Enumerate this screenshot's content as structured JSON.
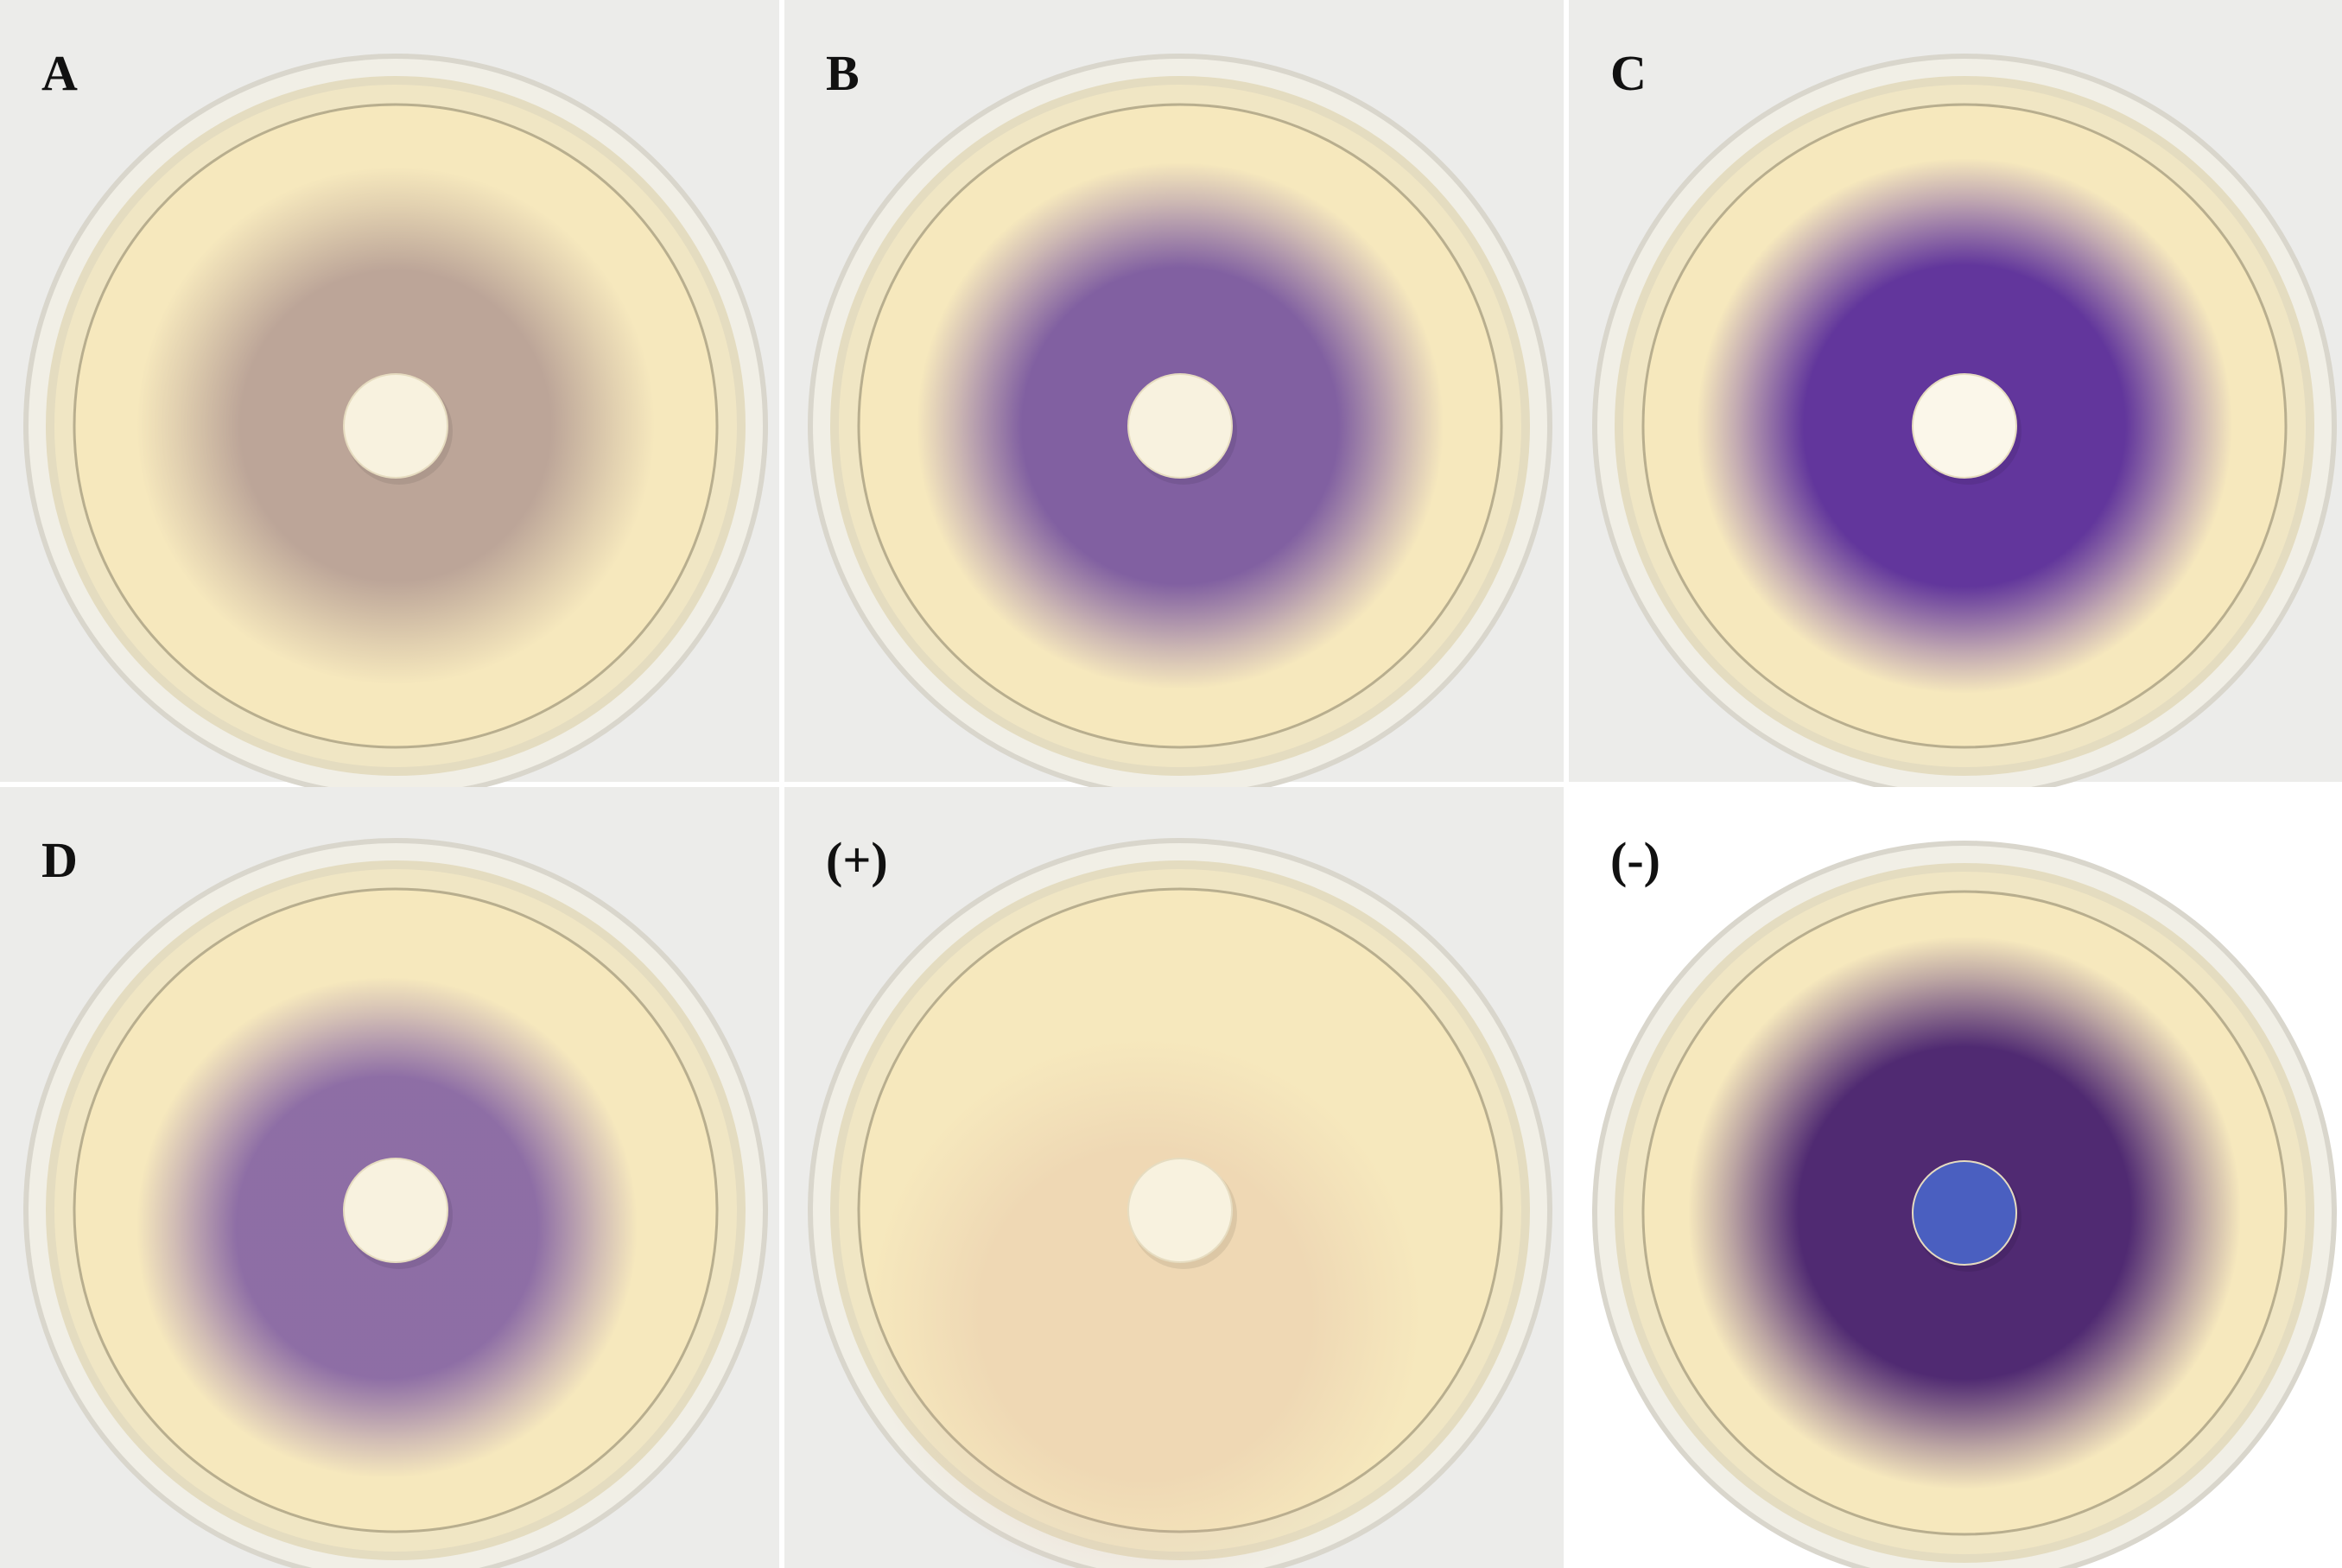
{
  "panels": [
    {
      "label": "A"
    },
    {
      "label": "B"
    },
    {
      "label": "C"
    },
    {
      "label": "D"
    },
    {
      "label": "(+)"
    },
    {
      "label": "(-)"
    }
  ]
}
